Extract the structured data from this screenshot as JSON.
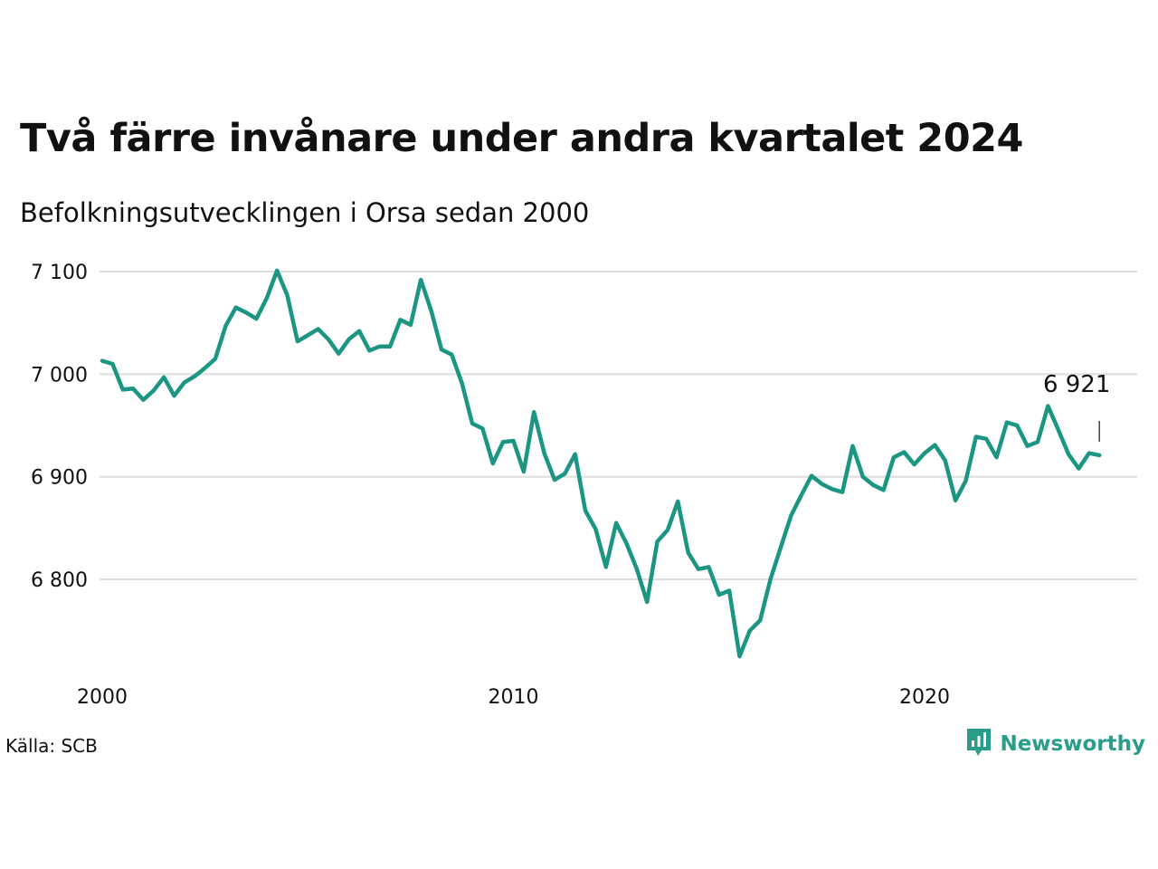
{
  "title": "Två färre invånare under andra kvartalet 2024",
  "subtitle": "Befolkningsutvecklingen i Orsa sedan 2000",
  "source": "Källa: SCB",
  "brand": {
    "name": "Newsworthy",
    "icon": "newsworthy-logo-icon",
    "color": "#2a9d8a"
  },
  "chart_data": {
    "type": "line",
    "title": "Två färre invånare under andra kvartalet 2024",
    "subtitle": "Befolkningsutvecklingen i Orsa sedan 2000",
    "x_ticks": [
      "2000",
      "2010",
      "2020"
    ],
    "y_ticks": [
      "6 800",
      "6 900",
      "7 000",
      "7 100"
    ],
    "y_tick_values": [
      6800,
      6900,
      7000,
      7100
    ],
    "ylim": [
      6710,
      7110
    ],
    "xlim": [
      2000,
      2025.1
    ],
    "grid": true,
    "line_color": "#1a9683",
    "end_label": "6 921",
    "series": [
      {
        "x": [
          2000.0,
          2000.25,
          2000.5,
          2000.75,
          2001.0,
          2001.25,
          2001.5,
          2001.75,
          2002.0,
          2002.25,
          2002.5,
          2002.75,
          2003.0,
          2003.25,
          2003.5,
          2003.75,
          2004.0,
          2004.25,
          2004.5,
          2004.75,
          2005.0,
          2005.25,
          2005.5,
          2005.75,
          2006.0,
          2006.25,
          2006.5,
          2006.75,
          2007.0,
          2007.25,
          2007.5,
          2007.75,
          2008.0,
          2008.25,
          2008.5,
          2008.75,
          2009.0,
          2009.25,
          2009.5,
          2009.75,
          2010.0,
          2010.25,
          2010.5,
          2010.75,
          2011.0,
          2011.25,
          2011.5,
          2011.75,
          2012.0,
          2012.25,
          2012.5,
          2012.75,
          2013.0,
          2013.25,
          2013.5,
          2013.75,
          2014.0,
          2014.25,
          2014.5,
          2014.75,
          2015.0,
          2015.25,
          2015.5,
          2015.75,
          2016.0,
          2016.25,
          2016.5,
          2016.75,
          2017.0,
          2017.25,
          2017.5,
          2017.75,
          2018.0,
          2018.25,
          2018.5,
          2018.75,
          2019.0,
          2019.25,
          2019.5,
          2019.75,
          2020.0,
          2020.25,
          2020.5,
          2020.75,
          2021.0,
          2021.25,
          2021.5,
          2021.75,
          2022.0,
          2022.25,
          2022.5,
          2022.75,
          2023.0,
          2023.25,
          2023.5,
          2023.75,
          2024.0,
          2024.25
        ],
        "values": [
          7013,
          7010,
          6985,
          6986,
          6975,
          6984,
          6997,
          6979,
          6992,
          6998,
          7006,
          7015,
          7047,
          7065,
          7060,
          7054,
          7074,
          7101,
          7077,
          7032,
          7038,
          7044,
          7034,
          7020,
          7034,
          7042,
          7023,
          7027,
          7027,
          7053,
          7048,
          7092,
          7062,
          7024,
          7019,
          6991,
          6952,
          6947,
          6913,
          6934,
          6935,
          6905,
          6963,
          6923,
          6897,
          6903,
          6922,
          6867,
          6849,
          6812,
          6855,
          6835,
          6810,
          6778,
          6837,
          6848,
          6876,
          6826,
          6810,
          6812,
          6785,
          6789,
          6725,
          6750,
          6760,
          6800,
          6831,
          6862,
          6882,
          6901,
          6893,
          6888,
          6885,
          6930,
          6900,
          6892,
          6887,
          6919,
          6924,
          6912,
          6923,
          6931,
          6916,
          6877,
          6896,
          6939,
          6937,
          6919,
          6953,
          6950,
          6930,
          6934,
          6969,
          6946,
          6922,
          6908,
          6923,
          6921
        ]
      }
    ]
  }
}
